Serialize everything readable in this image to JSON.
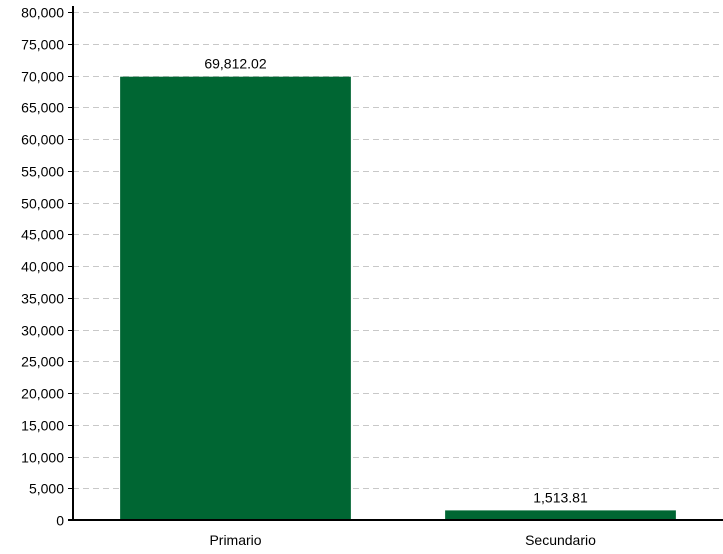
{
  "chart_data": {
    "type": "bar",
    "title": "",
    "xlabel": "",
    "ylabel": "",
    "categories": [
      "Primario",
      "Secundario"
    ],
    "values": [
      69812.02,
      1513.81
    ],
    "value_labels": [
      "69,812.02",
      "1,513.81"
    ],
    "ylim": [
      0,
      80000
    ],
    "yticks": [
      0,
      5000,
      10000,
      15000,
      20000,
      25000,
      30000,
      35000,
      40000,
      45000,
      50000,
      55000,
      60000,
      65000,
      70000,
      75000,
      80000
    ],
    "ytick_labels": [
      "0",
      "5,000",
      "10,000",
      "15,000",
      "20,000",
      "25,000",
      "30,000",
      "35,000",
      "40,000",
      "45,000",
      "50,000",
      "55,000",
      "60,000",
      "65,000",
      "70,000",
      "75,000",
      "80,000"
    ],
    "grid": "horizontal dashed",
    "legend": "none",
    "bar_color": "#006633"
  }
}
